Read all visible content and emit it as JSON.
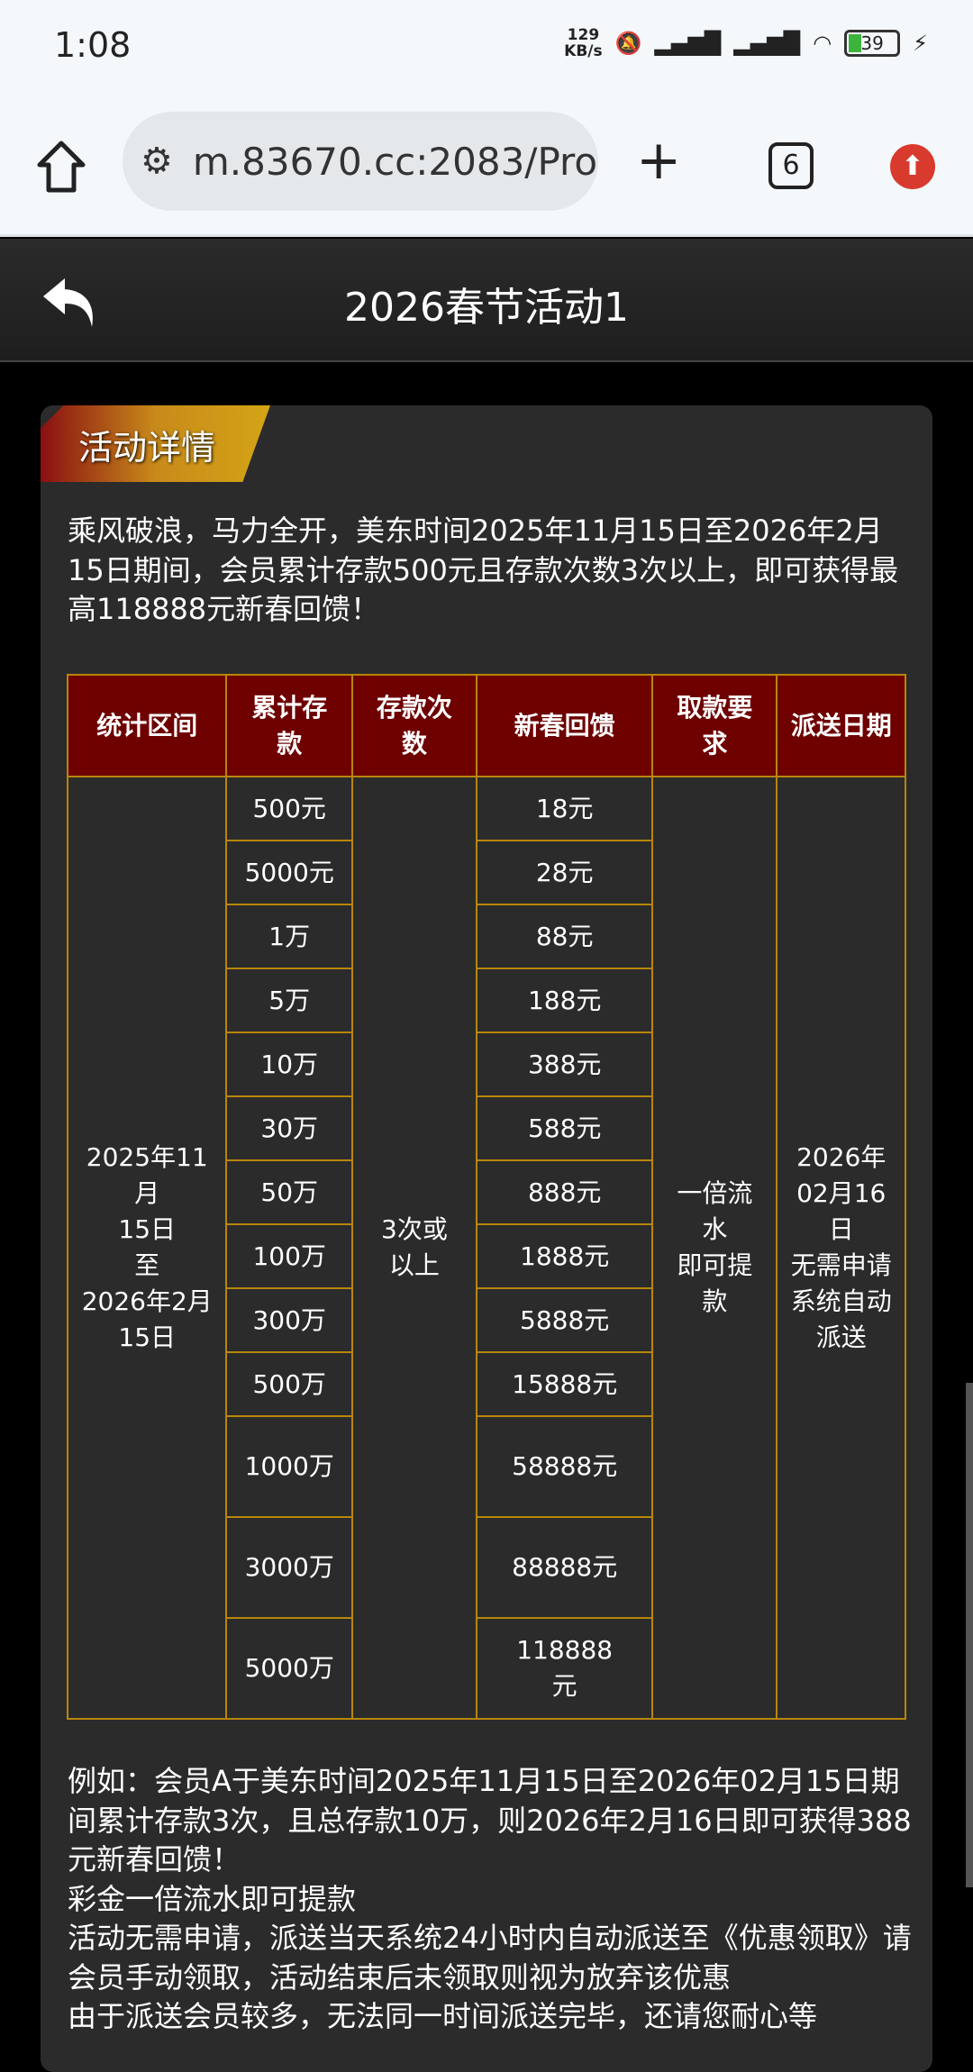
{
  "status_bar": {
    "time": "1:08",
    "net_speed_top": "129",
    "net_speed_bottom": "KB/s",
    "battery": "39",
    "icons": [
      "bell-muted-icon",
      "signal-hd-icon",
      "signal-hd-icon",
      "wifi-icon",
      "battery-icon",
      "charging-icon"
    ]
  },
  "browser": {
    "url": "m.83670.cc:2083/Pro",
    "tab_count": "6",
    "icons": [
      "home-icon",
      "site-settings-icon",
      "new-tab-icon",
      "tabs-icon",
      "update-icon"
    ]
  },
  "header": {
    "title": "2026春节活动1"
  },
  "badge": "活动详情",
  "intro": "乘风破浪，马力全开，美东时间2025年11月15日至2026年2月15日期间，会员累计存款500元且存款次数3次以上，即可获得最高118888元新春回馈！",
  "table": {
    "headers": [
      "统计区间",
      "累计存款",
      "存款次数",
      "新春回馈",
      "取款要求",
      "派送日期"
    ],
    "period": [
      "2025年11月",
      "15日",
      "至",
      "2026年2月",
      "15日"
    ],
    "count": [
      "3次或",
      "以上"
    ],
    "withdraw": [
      "一倍流",
      "水",
      "即可提",
      "款"
    ],
    "delivery": [
      "2026年",
      "02月16日",
      "无需申请",
      "系统自动",
      "派送"
    ],
    "rows": [
      {
        "deposit": "500元",
        "reward": "18元"
      },
      {
        "deposit": "5000元",
        "reward": "28元"
      },
      {
        "deposit": "1万",
        "reward": "88元"
      },
      {
        "deposit": "5万",
        "reward": "188元"
      },
      {
        "deposit": "10万",
        "reward": "388元"
      },
      {
        "deposit": "30万",
        "reward": "588元"
      },
      {
        "deposit": "50万",
        "reward": "888元"
      },
      {
        "deposit": "100万",
        "reward": "1888元"
      },
      {
        "deposit": "300万",
        "reward": "5888元"
      },
      {
        "deposit": "500万",
        "reward": "15888元"
      },
      {
        "deposit": "1000万",
        "reward": "58888元"
      },
      {
        "deposit": "3000万",
        "reward": "88888元"
      },
      {
        "deposit": "5000万",
        "reward": "118888元"
      }
    ]
  },
  "footer": [
    "例如：会员A于美东时间2025年11月15日至2026年02月15日期间累计存款3次，且总存款10万，则2026年2月16日即可获得388元新春回馈！",
    "彩金一倍流水即可提款",
    "活动无需申请，派送当天系统24小时内自动派送至《优惠领取》请会员手动领取，活动结束后未领取则视为放弃该优惠",
    "由于派送会员较多，无法同一时间派送完毕，还请您耐心等"
  ],
  "colors": {
    "table_header_bg": "#6e0000",
    "table_border": "#b8860b",
    "card_bg": "#2b2b2b"
  }
}
